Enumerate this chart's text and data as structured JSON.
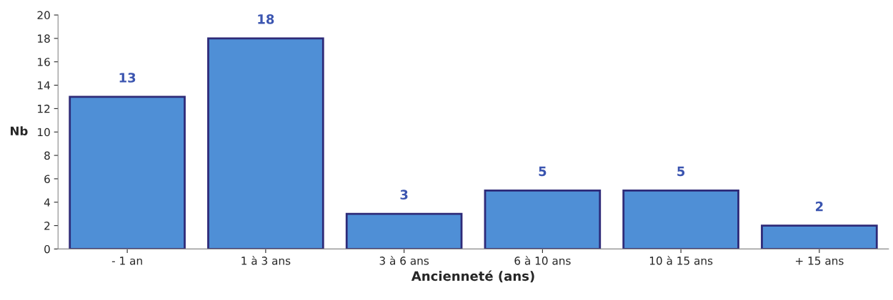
{
  "chart_data": {
    "type": "bar",
    "categories": [
      "- 1 an",
      "1 à 3 ans",
      "3 à 6 ans",
      "6 à 10 ans",
      "10 à 15 ans",
      "+ 15 ans"
    ],
    "values": [
      13,
      18,
      3,
      5,
      5,
      2
    ],
    "color": "#4f8fd6",
    "xlabel": "Ancienneté (ans)",
    "ylabel": "Nb",
    "ylim": [
      0,
      20
    ],
    "yticks": [
      0,
      2,
      4,
      6,
      8,
      10,
      12,
      14,
      16,
      18,
      20
    ],
    "data_labels": true,
    "grid": false,
    "legend": false
  }
}
